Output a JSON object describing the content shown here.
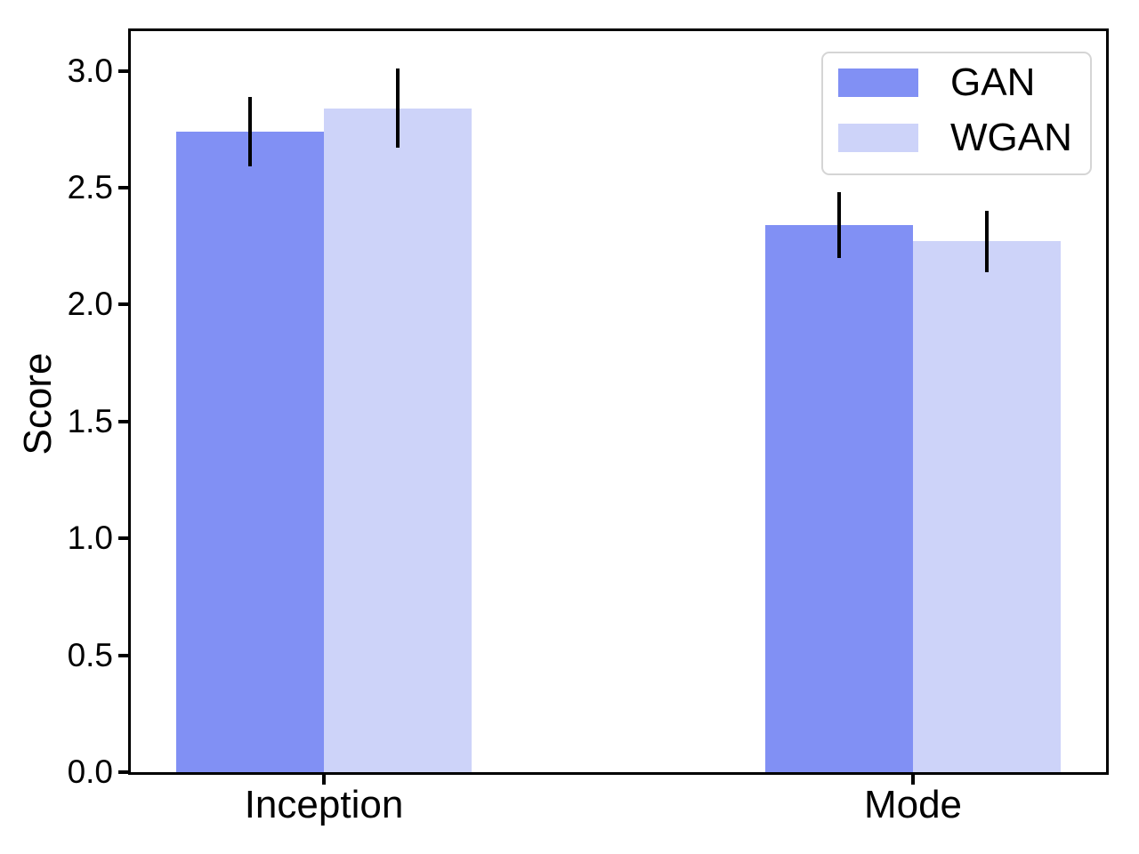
{
  "chart_data": {
    "type": "bar",
    "title": "",
    "categories": [
      "Inception",
      "Mode"
    ],
    "series": [
      {
        "name": "GAN",
        "color": "#8190f4",
        "values": [
          2.74,
          2.34
        ],
        "errors": [
          0.15,
          0.14
        ]
      },
      {
        "name": "WGAN",
        "color": "#cdd3f9",
        "values": [
          2.84,
          2.27
        ],
        "errors": [
          0.17,
          0.13
        ]
      }
    ],
    "xlabel": "",
    "ylabel": "Score",
    "ylim": [
      0,
      3.17
    ],
    "yticks": [
      "0.0",
      "0.5",
      "1.0",
      "1.5",
      "2.0",
      "2.5",
      "3.0"
    ],
    "grid": false,
    "legend": {
      "position": "upper-right",
      "entries": [
        "GAN",
        "WGAN"
      ]
    },
    "error_bar_color": "#000000",
    "axis_color": "#000000",
    "background_color": "#ffffff"
  }
}
